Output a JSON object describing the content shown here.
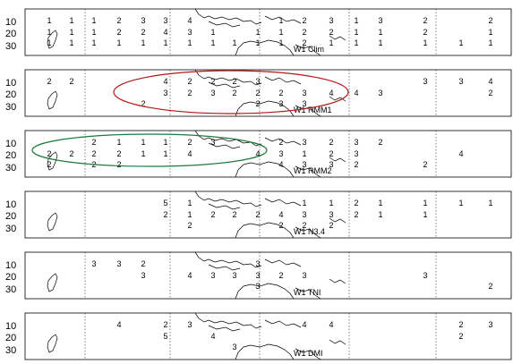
{
  "lat_labels": [
    "10",
    "20",
    "30"
  ],
  "accent_colors": {
    "ellipse_rmm1": "#b01818",
    "ellipse_rmm2": "#1c7a3c"
  },
  "panels": [
    {
      "label": "W1  Clim",
      "rows": [
        [
          "1",
          "1",
          "1",
          "2",
          "3",
          "3",
          "4",
          "",
          "",
          "",
          "1",
          "2",
          "3",
          "1",
          "3",
          "2",
          "",
          "2"
        ],
        [
          "1",
          "1",
          "1",
          "2",
          "2",
          "4",
          "3",
          "1",
          "",
          "1",
          "1",
          "2",
          "2",
          "1",
          "1",
          "2",
          "",
          "1"
        ],
        [
          "1",
          "1",
          "1",
          "1",
          "1",
          "1",
          "1",
          "1",
          "1",
          "1",
          "1",
          "2",
          "1",
          "1",
          "1",
          "1",
          "1",
          "1"
        ]
      ]
    },
    {
      "label": "W1  RMM1",
      "rows": [
        [
          "2",
          "2",
          "",
          "",
          "",
          "4",
          "2",
          "2",
          "2",
          "3",
          "",
          "",
          "",
          "",
          "",
          "3",
          "3",
          "4"
        ],
        [
          "",
          "",
          "",
          "",
          "",
          "3",
          "2",
          "3",
          "2",
          "2",
          "2",
          "3",
          "4",
          "4",
          "3",
          "",
          "",
          "2"
        ],
        [
          "",
          "",
          "",
          "",
          "2",
          "",
          "",
          "",
          "",
          "2",
          "3",
          "3",
          "",
          "",
          "",
          "",
          "",
          ""
        ]
      ]
    },
    {
      "label": "W1  RMM2",
      "rows": [
        [
          "",
          "",
          "2",
          "1",
          "1",
          "1",
          "2",
          "3",
          "",
          "",
          "2",
          "3",
          "2",
          "3",
          "2",
          "",
          "",
          ""
        ],
        [
          "2",
          "2",
          "2",
          "2",
          "1",
          "1",
          "4",
          "",
          "",
          "4",
          "3",
          "1",
          "2",
          "3",
          "",
          "",
          "4",
          ""
        ],
        [
          "2",
          "",
          "2",
          "2",
          "",
          "",
          "",
          "",
          "",
          "",
          "4",
          "3",
          "3",
          "2",
          "",
          "2",
          "",
          ""
        ]
      ]
    },
    {
      "label": "W1  N3.4",
      "rows": [
        [
          "",
          "",
          "",
          "",
          "",
          "5",
          "1",
          "",
          "",
          "",
          "",
          "1",
          "1",
          "2",
          "1",
          "1",
          "1",
          "1"
        ],
        [
          "",
          "",
          "",
          "",
          "",
          "2",
          "1",
          "2",
          "2",
          "2",
          "4",
          "3",
          "3",
          "2",
          "1",
          "1",
          "",
          ""
        ],
        [
          "",
          "",
          "",
          "",
          "",
          "",
          "2",
          "",
          "",
          "",
          "2",
          "2",
          "2",
          "",
          "",
          "",
          "",
          ""
        ]
      ]
    },
    {
      "label": "W1  TNI",
      "rows": [
        [
          "",
          "",
          "3",
          "3",
          "2",
          "",
          "",
          "",
          "",
          "3",
          "",
          "",
          "",
          "",
          "",
          "",
          "",
          ""
        ],
        [
          "",
          "",
          "",
          "",
          "3",
          "",
          "4",
          "3",
          "3",
          "3",
          "2",
          "3",
          "",
          "",
          "",
          "3",
          "",
          ""
        ],
        [
          "",
          "",
          "",
          "",
          "",
          "",
          "",
          "",
          "",
          "3",
          "",
          "",
          "",
          "",
          "",
          "",
          "",
          "2"
        ]
      ]
    },
    {
      "label": "W1  DMI",
      "rows": [
        [
          "",
          "",
          "",
          "4",
          "",
          "2",
          "3",
          "",
          "",
          "",
          "",
          "4",
          "4",
          "",
          "",
          "",
          "2",
          "3"
        ],
        [
          "",
          "",
          "",
          "",
          "",
          "5",
          "",
          "4",
          "",
          "",
          "",
          "",
          "",
          "",
          "",
          "",
          "2",
          ""
        ],
        [
          "",
          "",
          "",
          "",
          "",
          "",
          "",
          "",
          "3",
          "",
          "",
          "",
          "",
          "",
          "",
          "",
          "",
          ""
        ]
      ]
    }
  ]
}
